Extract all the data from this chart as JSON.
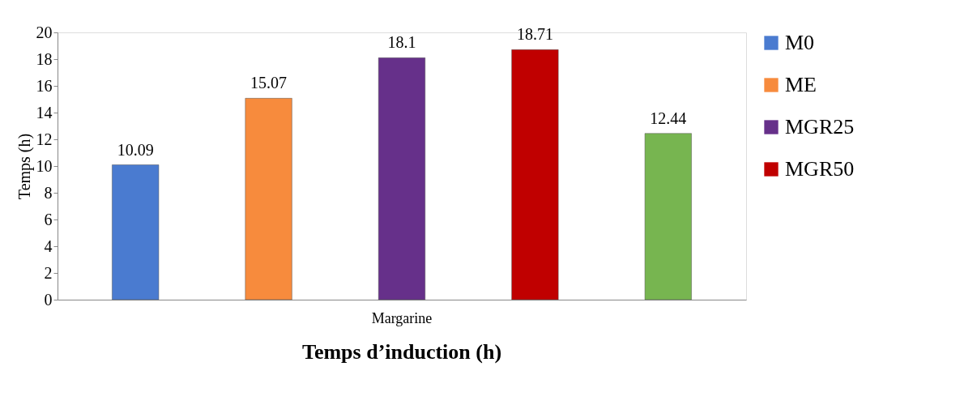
{
  "chart_data": {
    "type": "bar",
    "title": "Temps d’induction (h)",
    "ylabel": "Temps (h)",
    "categories": [
      "Margarine"
    ],
    "series": [
      {
        "name": "M0",
        "color": "#4a7bd0",
        "values": [
          10.09
        ]
      },
      {
        "name": "ME",
        "color": "#f78b3d",
        "values": [
          15.07
        ]
      },
      {
        "name": "MGR25",
        "color": "#66308a",
        "values": [
          18.1
        ]
      },
      {
        "name": "MGR50",
        "color": "#c00000",
        "values": [
          18.71
        ]
      },
      {
        "color": "#77b550",
        "values": [
          12.44
        ]
      }
    ],
    "ylim": [
      0,
      20
    ],
    "yticks": [
      0,
      2,
      4,
      6,
      8,
      10,
      12,
      14,
      16,
      18,
      20
    ],
    "data_labels": true,
    "grid": false,
    "legend": "right"
  }
}
